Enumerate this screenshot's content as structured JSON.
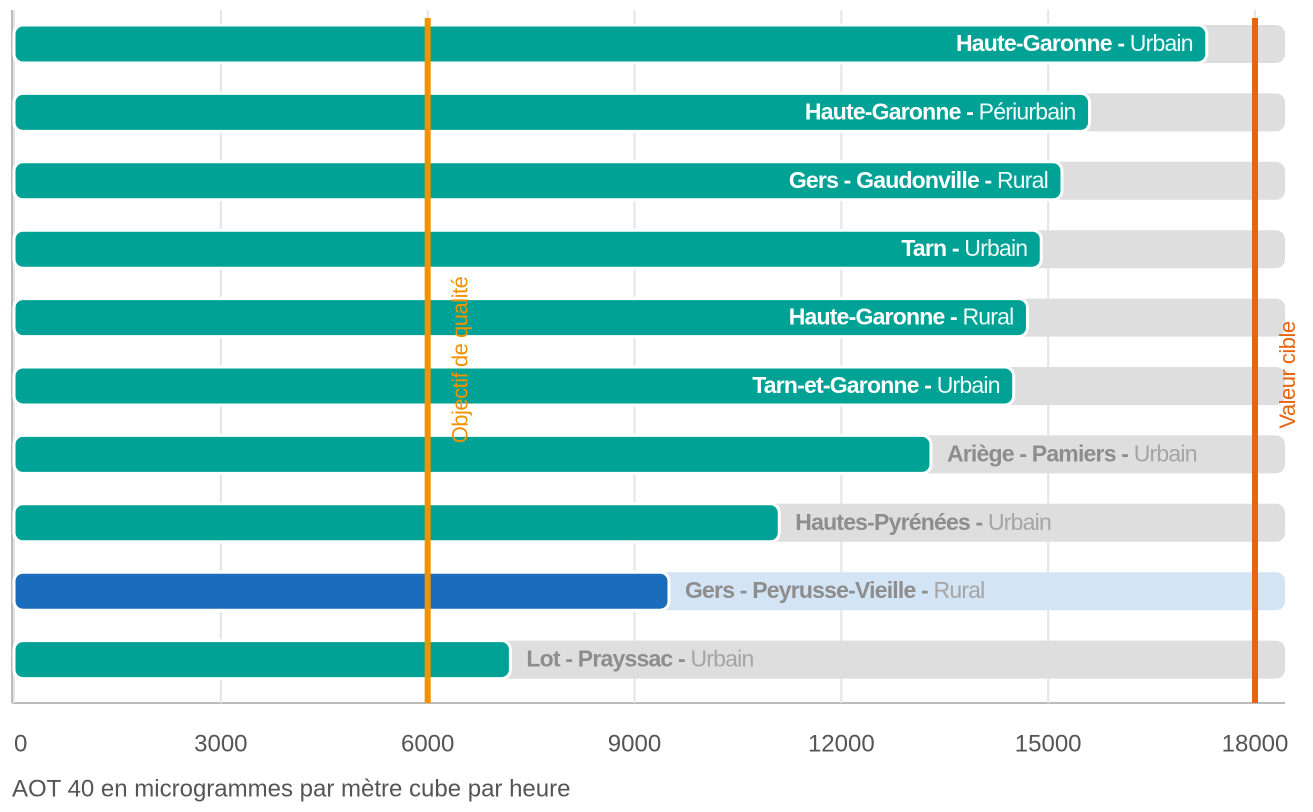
{
  "chart_data": {
    "type": "bar",
    "orientation": "horizontal",
    "categories": [
      "Haute-Garonne - Urbain",
      "Haute-Garonne - Périurbain",
      "Gers - Gaudonville - Rural",
      "Tarn - Urbain",
      "Haute-Garonne - Rural",
      "Tarn-et-Garonne - Urbain",
      "Ariège - Pamiers - Urbain",
      "Hautes-Pyrénées - Urbain",
      "Gers - Peyrusse-Vieille - Rural",
      "Lot - Prayssac - Urbain"
    ],
    "values": [
      17300,
      15600,
      15200,
      14900,
      14700,
      14500,
      13300,
      11100,
      9500,
      7200
    ],
    "color": "#00a295",
    "highlight_index": 8,
    "highlight_color": "#1a6dbd",
    "xlim": [
      0,
      18000
    ],
    "xticks": [
      0,
      3000,
      6000,
      9000,
      12000,
      15000,
      18000
    ],
    "x_label": "AOT 40 en microgrammes par mètre cube par heure",
    "reference_lines": [
      {
        "value": 6000,
        "label": "Objectif de qualité",
        "color": "#f39200"
      },
      {
        "value": 18000,
        "label": "Valeur cible",
        "color": "#e8650f"
      }
    ]
  }
}
